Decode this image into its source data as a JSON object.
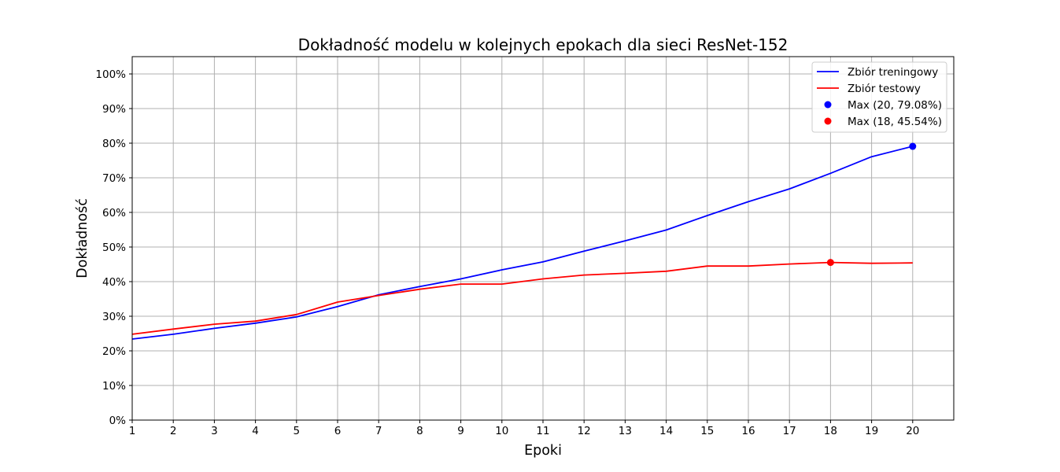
{
  "chart_data": {
    "type": "line",
    "title": "Dokładność modelu w kolejnych epokach dla sieci ResNet-152",
    "xlabel": "Epoki",
    "ylabel": "Dokładność",
    "x": [
      1,
      2,
      3,
      4,
      5,
      6,
      7,
      8,
      9,
      10,
      11,
      12,
      13,
      14,
      15,
      16,
      17,
      18,
      19,
      20
    ],
    "xticks": [
      "1",
      "2",
      "3",
      "4",
      "5",
      "6",
      "7",
      "8",
      "9",
      "10",
      "11",
      "12",
      "13",
      "14",
      "15",
      "16",
      "17",
      "18",
      "19",
      "20"
    ],
    "yticks": [
      "0%",
      "10%",
      "20%",
      "30%",
      "40%",
      "50%",
      "60%",
      "70%",
      "80%",
      "90%",
      "100%"
    ],
    "xlim": [
      1,
      21
    ],
    "ylim": [
      0,
      105
    ],
    "grid": true,
    "legend_position": "top-right",
    "series": [
      {
        "name": "Zbiór treningowy",
        "color": "#0000ff",
        "values": [
          23.4,
          24.8,
          26.5,
          28.0,
          29.8,
          32.8,
          36.2,
          38.6,
          40.8,
          43.4,
          45.7,
          48.8,
          51.8,
          54.9,
          59.1,
          63.1,
          66.8,
          71.3,
          76.1,
          79.08
        ]
      },
      {
        "name": "Zbiór testowy",
        "color": "#ff0000",
        "values": [
          24.8,
          26.3,
          27.7,
          28.6,
          30.5,
          34.1,
          36.0,
          37.8,
          39.3,
          39.3,
          40.8,
          41.9,
          42.4,
          43.0,
          44.5,
          44.5,
          45.1,
          45.54,
          45.3,
          45.4
        ]
      }
    ],
    "markers": [
      {
        "label": "Max (20, 79.08%)",
        "x": 20,
        "y": 79.08,
        "color": "#0000ff"
      },
      {
        "label": "Max (18, 45.54%)",
        "x": 18,
        "y": 45.54,
        "color": "#ff0000"
      }
    ]
  }
}
